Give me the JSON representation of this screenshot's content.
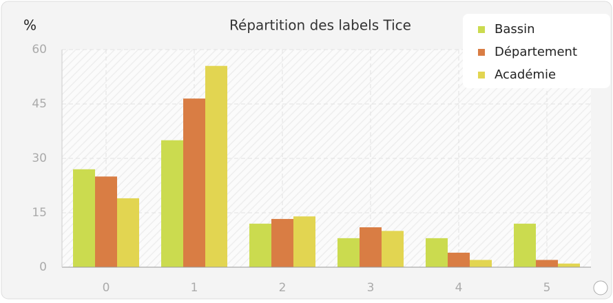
{
  "chart_data": {
    "type": "bar",
    "title": "Répartition des labels Tice",
    "ylabel": "%",
    "categories": [
      "0",
      "1",
      "2",
      "3",
      "4",
      "5"
    ],
    "series": [
      {
        "name": "Bassin",
        "color": "#cbdb4f",
        "values": [
          27,
          35,
          12,
          8,
          8,
          12
        ]
      },
      {
        "name": "Département",
        "color": "#d97d44",
        "values": [
          25,
          46.5,
          13.3,
          11,
          4,
          2
        ]
      },
      {
        "name": "Académie",
        "color": "#e2d551",
        "values": [
          19,
          55.5,
          14,
          10,
          2,
          1
        ]
      }
    ],
    "ylim": [
      0,
      60
    ],
    "yticks": [
      0,
      15,
      30,
      45,
      60
    ],
    "grid": true,
    "legend": "top-right"
  }
}
